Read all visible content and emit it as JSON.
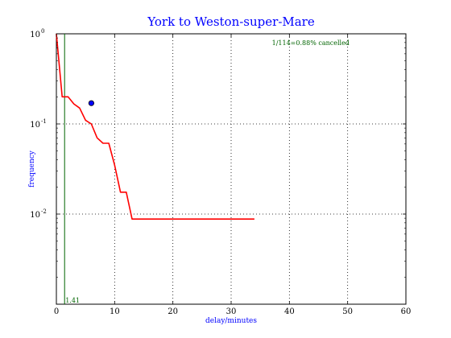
{
  "chart_data": {
    "type": "line",
    "title": "York to Weston-super-Mare",
    "xlabel": "delay/minutes",
    "ylabel": "frequency",
    "xlim": [
      0,
      60
    ],
    "ylim": [
      0.001,
      1
    ],
    "yscale": "log",
    "grid": true,
    "x_ticks": [
      {
        "value": 0,
        "label": "0"
      },
      {
        "value": 10,
        "label": "10"
      },
      {
        "value": 20,
        "label": "20"
      },
      {
        "value": 30,
        "label": "30"
      },
      {
        "value": 40,
        "label": "40"
      },
      {
        "value": 50,
        "label": "50"
      },
      {
        "value": 60,
        "label": "60"
      }
    ],
    "y_ticks": [
      {
        "value": 1,
        "base": "10",
        "exp": "0"
      },
      {
        "value": 0.1,
        "base": "10",
        "exp": "-1"
      },
      {
        "value": 0.01,
        "base": "10",
        "exp": "-2"
      }
    ],
    "series": [
      {
        "color": "#ff0000",
        "x": [
          0,
          1,
          2,
          3,
          4,
          5,
          6,
          7,
          8,
          9,
          10,
          11,
          12,
          13,
          34
        ],
        "y": [
          1.0,
          0.2,
          0.2,
          0.167,
          0.15,
          0.11,
          0.1,
          0.07,
          0.061,
          0.061,
          0.035,
          0.0175,
          0.0175,
          0.0088,
          0.0088
        ]
      }
    ],
    "marker": {
      "x": 6,
      "y": 0.17,
      "color": "#0000ff"
    },
    "vline": {
      "x": 1.41,
      "label": "1.41",
      "color": "#006400"
    },
    "annotation": {
      "text": "1/114=0.88% cancelled",
      "color": "#006400",
      "x": 37,
      "y": 0.75
    }
  }
}
